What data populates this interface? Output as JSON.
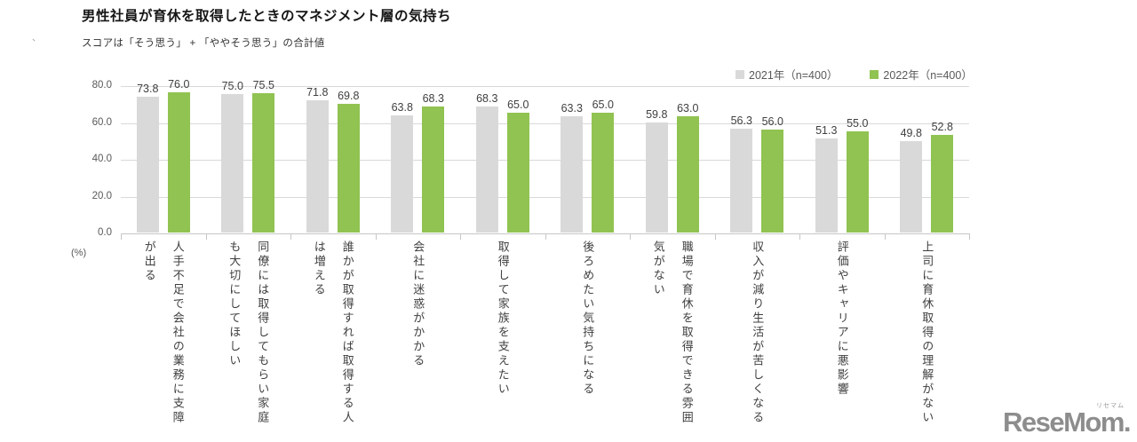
{
  "title": "男性社員が育休を取得したときのマネジメント層の気持ち",
  "subtitle": "スコアは「そう思う」 + 「ややそう思う」の合計値",
  "corner_mark": "、",
  "unit_label": "(%)",
  "logo": {
    "text": "ReseMom.",
    "ruby": "リセマム"
  },
  "chart_data": {
    "type": "bar",
    "title": "男性社員が育休を取得したときのマネジメント層の気持ち",
    "subtitle": "スコアは「そう思う」 + 「ややそう思う」の合計値",
    "categories": [
      "人手不足で会社の業務に支障が出る",
      "同僚には取得してもらい家庭も大切にしてほしい",
      "誰かが取得すれば取得する人は増える",
      "会社に迷惑がかかる",
      "取得して家族を支えたい",
      "後ろめたい気持ちになる",
      "職場で育休を取得できる雰囲気がない",
      "収入が減り生活が苦しくなる",
      "評価やキャリアに悪影響",
      "上司に育休取得の理解がない"
    ],
    "series": [
      {
        "name": "2021年（n=400）",
        "color": "#d9d9d9",
        "values": [
          73.8,
          75.0,
          71.8,
          63.8,
          68.3,
          63.3,
          59.8,
          56.3,
          51.3,
          49.8
        ]
      },
      {
        "name": "2022年（n=400）",
        "color": "#90C351",
        "values": [
          76.0,
          75.5,
          69.8,
          68.3,
          65.0,
          65.0,
          63.0,
          56.0,
          55.0,
          52.8
        ]
      }
    ],
    "ylim": [
      0,
      80
    ],
    "yticks": [
      0,
      20,
      40,
      60,
      80
    ],
    "ytick_labels": [
      "0.0",
      "20.0",
      "40.0",
      "60.0",
      "80.0"
    ],
    "ylabel": "(%)",
    "grid": true,
    "legend_position": "top-right",
    "value_labels": true,
    "value_label_decimals": 1
  }
}
